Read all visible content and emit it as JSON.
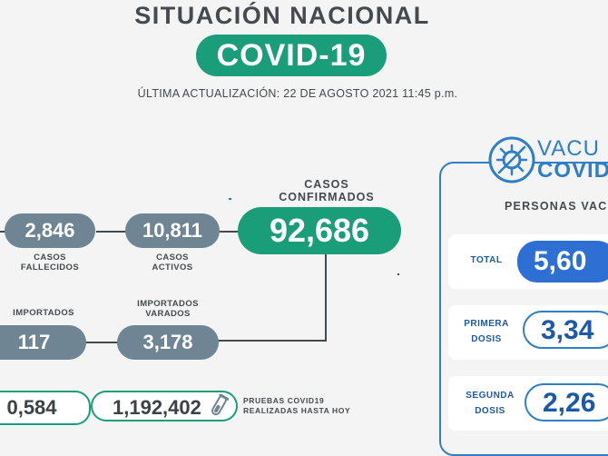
{
  "header": {
    "title": "SITUACIÓN NACIONAL",
    "badge": "COVID-19",
    "updated": "ÚLTIMA ACTUALIZACIÓN: 22 DE AGOSTO 2021 11:45 p.m."
  },
  "cases": {
    "confirmed_label_1": "CASOS",
    "confirmed_label_2": "CONFIRMADOS",
    "confirmed": "92,686",
    "deaths": "2,846",
    "deaths_label_1": "CASOS",
    "deaths_label_2": "FALLECIDOS",
    "active": "10,811",
    "active_label_1": "CASOS",
    "active_label_2": "ACTIVOS",
    "imported": "117",
    "imported_label": "IMPORTADOS",
    "stranded": "3,178",
    "stranded_label_1": "IMPORTADOS",
    "stranded_label_2": "VARADOS"
  },
  "tests": {
    "partial_value": "0,584",
    "total": "1,192,402",
    "label_1": "PRUEBAS COVID19",
    "label_2": "REALIZADAS HASTA HOY"
  },
  "vaccination": {
    "title_1": "VACU",
    "title_2": "COVID",
    "people_label": "PERSONAS VAC",
    "total_label": "TOTAL",
    "total_value": "5,60",
    "first_label_1": "PRIMERA",
    "first_label_2": "DOSIS",
    "first_value": "3,34",
    "second_label_1": "SEGUNDA",
    "second_label_2": "DOSIS",
    "second_value": "2,26"
  },
  "colors": {
    "green": "#1a9e79",
    "slate": "#6f8594",
    "blue": "#2e7ec8",
    "dark_text": "#444a4e"
  }
}
